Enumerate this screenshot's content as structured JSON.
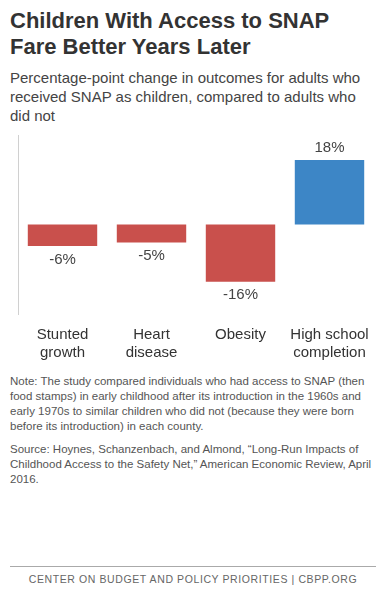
{
  "chart_data": {
    "type": "bar",
    "title": "Children With Access to SNAP Fare Better Years Later",
    "subtitle": "Percentage-point change in outcomes for adults who received SNAP as children, compared to adults who did not",
    "categories": [
      "Stunted growth",
      "Heart disease",
      "Obesity",
      "High school completion"
    ],
    "values": [
      -6,
      -5,
      -16,
      18
    ],
    "value_labels": [
      "-6%",
      "-5%",
      "-16%",
      "18%"
    ],
    "colors": [
      "#c9504c",
      "#c9504c",
      "#c9504c",
      "#3d86c6"
    ],
    "ylim": [
      -25,
      25
    ],
    "grid": false,
    "data_labels": true,
    "tick_labels": "x",
    "note": "Note: The study compared individuals who had access to SNAP (then food stamps) in early childhood after its introduction in the 1960s and early 1970s to similar children who did not (because they were born before its introduction) in each county.",
    "source": "Source: Hoynes, Schanzenbach, and Almond, “Long-Run Impacts of Childhood Access to the Safety Net,” American Economic Review, April 2016.",
    "footer": "CENTER ON BUDGET AND POLICY PRIORITIES | CBPP.ORG"
  }
}
